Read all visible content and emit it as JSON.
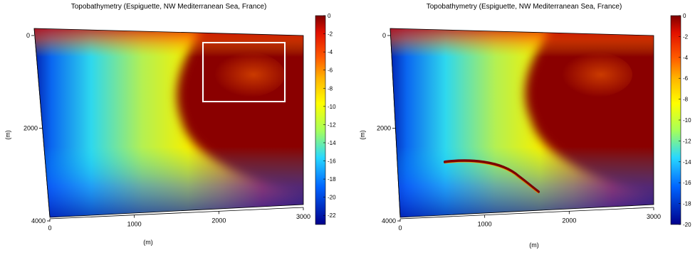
{
  "chart_data": [
    {
      "type": "heatmap",
      "title": "Topobathymetry (Espiguette, NW Mediterranean Sea, France)",
      "xlabel": "(m)",
      "ylabel": "(m)",
      "xlim": [
        0,
        3000
      ],
      "ylim": [
        4000,
        0
      ],
      "x_ticks": [
        "0",
        "1000",
        "2000",
        "3000"
      ],
      "y_ticks": [
        "0",
        "2000",
        "4000"
      ],
      "colorbar": {
        "min": -23,
        "max": 0,
        "ticks": [
          "0",
          "-2",
          "-4",
          "-6",
          "-8",
          "-10",
          "-12",
          "-14",
          "-16",
          "-18",
          "-20",
          "-22"
        ],
        "colormap": "jet"
      },
      "annotations": [
        {
          "type": "rectangle",
          "color": "#ffffff",
          "x_range": [
            1800,
            2800
          ],
          "y_range": [
            200,
            1300
          ]
        }
      ]
    },
    {
      "type": "heatmap",
      "title": "Topobathymetry (Espiguette, NW Mediterranean Sea, France)",
      "xlabel": "(m)",
      "ylabel": "(m)",
      "xlim": [
        0,
        3000
      ],
      "ylim": [
        4000,
        0
      ],
      "x_ticks": [
        "0",
        "1000",
        "2000",
        "3000"
      ],
      "y_ticks": [
        "0",
        "2000",
        "4000"
      ],
      "colorbar": {
        "min": -20,
        "max": 0,
        "ticks": [
          "0",
          "-2",
          "-4",
          "-6",
          "-8",
          "-10",
          "-12",
          "-14",
          "-16",
          "-18",
          "-20"
        ],
        "colormap": "jet"
      },
      "annotations": [
        {
          "type": "curve",
          "color": "#7a0000",
          "points": [
            [
              500,
              2900
            ],
            [
              1000,
              3000
            ],
            [
              1500,
              3450
            ]
          ]
        }
      ]
    }
  ]
}
